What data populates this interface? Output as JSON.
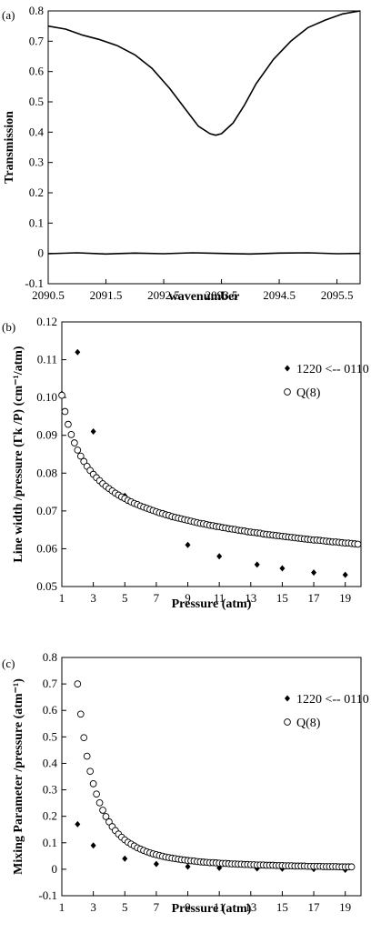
{
  "chart_data": [
    {
      "panel_label": "(a)",
      "type": "line",
      "xlabel": "wavenumber",
      "ylabel": "Transmission",
      "xlim": [
        2090.5,
        2095.9
      ],
      "ylim": [
        -0.1,
        0.8
      ],
      "xticks": [
        2090.5,
        2091.5,
        2092.5,
        2093.5,
        2094.5,
        2095.5
      ],
      "xtick_labels": [
        "2090.5",
        "2091.5",
        "2092.5",
        "2093.5",
        "2094.5",
        "2095.5"
      ],
      "yticks": [
        -0.1,
        0,
        0.1,
        0.2,
        0.3,
        0.4,
        0.5,
        0.6,
        0.7,
        0.8
      ],
      "ytick_labels": [
        "-0.1",
        "0",
        "0.1",
        "0.2",
        "0.3",
        "0.4",
        "0.5",
        "0.6",
        "0.7",
        "0.8"
      ],
      "series": [
        {
          "style": "line",
          "x": [
            2090.5,
            2090.8,
            2091.1,
            2091.4,
            2091.7,
            2092.0,
            2092.3,
            2092.6,
            2092.9,
            2093.1,
            2093.3,
            2093.4,
            2093.5,
            2093.7,
            2093.9,
            2094.1,
            2094.4,
            2094.7,
            2095.0,
            2095.3,
            2095.6,
            2095.9
          ],
          "y": [
            0.75,
            0.74,
            0.72,
            0.705,
            0.685,
            0.655,
            0.61,
            0.545,
            0.47,
            0.42,
            0.395,
            0.39,
            0.395,
            0.43,
            0.49,
            0.56,
            0.64,
            0.7,
            0.745,
            0.77,
            0.79,
            0.8
          ]
        },
        {
          "style": "line",
          "x": [
            2090.5,
            2091.0,
            2091.5,
            2092.0,
            2092.5,
            2093.0,
            2093.5,
            2094.0,
            2094.5,
            2095.0,
            2095.5,
            2095.9
          ],
          "y": [
            -0.001,
            0.002,
            -0.002,
            0.001,
            -0.001,
            0.002,
            0.0,
            -0.002,
            0.001,
            0.002,
            -0.001,
            0.0
          ]
        }
      ]
    },
    {
      "panel_label": "(b)",
      "type": "scatter",
      "xlabel": "Pressure (atm)",
      "ylabel": "Line width /pressure (Γk /P) (cm⁻¹/atm)",
      "xlim": [
        1,
        20
      ],
      "ylim": [
        0.05,
        0.12
      ],
      "xticks": [
        1,
        3,
        5,
        7,
        9,
        11,
        13,
        15,
        17,
        19
      ],
      "xtick_labels": [
        "1",
        "3",
        "5",
        "7",
        "9",
        "11",
        "13",
        "15",
        "17",
        "19"
      ],
      "yticks": [
        0.05,
        0.06,
        0.07,
        0.08,
        0.09,
        0.1,
        0.11,
        0.12
      ],
      "ytick_labels": [
        "0.05",
        "0.06",
        "0.07",
        "0.08",
        "0.09",
        "0.10",
        "0.11",
        "0.12"
      ],
      "legend_position": "top-right",
      "series": [
        {
          "name": "1220 <-- 0110",
          "marker": "diamond",
          "x": [
            1,
            2,
            3,
            5,
            9,
            11,
            13.4,
            15,
            17,
            19
          ],
          "y": [
            0.101,
            0.112,
            0.091,
            0.074,
            0.061,
            0.058,
            0.0558,
            0.0548,
            0.0537,
            0.0531
          ]
        },
        {
          "name": "Q(8)",
          "marker": "open-circle",
          "x": [
            1.0,
            1.2,
            1.4,
            1.6,
            1.8,
            2.0,
            2.2,
            2.4,
            2.6,
            2.8,
            3.0,
            3.2,
            3.4,
            3.6,
            3.8,
            4.0,
            4.2,
            4.4,
            4.6,
            4.8,
            5.0,
            5.2,
            5.4,
            5.6,
            5.8,
            6.0,
            6.2,
            6.4,
            6.6,
            6.8,
            7.0,
            7.2,
            7.4,
            7.6,
            7.8,
            8.0,
            8.2,
            8.4,
            8.6,
            8.8,
            9.0,
            9.2,
            9.4,
            9.6,
            9.8,
            10.0,
            10.2,
            10.4,
            10.6,
            10.8,
            11.0,
            11.2,
            11.4,
            11.6,
            11.8,
            12.0,
            12.2,
            12.4,
            12.6,
            12.8,
            13.0,
            13.2,
            13.4,
            13.6,
            13.8,
            14.0,
            14.2,
            14.4,
            14.6,
            14.8,
            15.0,
            15.2,
            15.4,
            15.6,
            15.8,
            16.0,
            16.2,
            16.4,
            16.6,
            16.8,
            17.0,
            17.2,
            17.4,
            17.6,
            17.8,
            18.0,
            18.2,
            18.4,
            18.6,
            18.8,
            19.0,
            19.2,
            19.4,
            19.6,
            19.8
          ],
          "y": [
            0.1006,
            0.0963,
            0.0929,
            0.0902,
            0.088,
            0.0861,
            0.0845,
            0.0831,
            0.0818,
            0.0807,
            0.0797,
            0.0788,
            0.078,
            0.0772,
            0.0765,
            0.0759,
            0.0753,
            0.0747,
            0.0742,
            0.0737,
            0.0733,
            0.0728,
            0.0724,
            0.072,
            0.0717,
            0.0713,
            0.071,
            0.0707,
            0.0704,
            0.0701,
            0.0698,
            0.0695,
            0.0693,
            0.069,
            0.0688,
            0.0685,
            0.0683,
            0.0681,
            0.0679,
            0.0677,
            0.0675,
            0.0673,
            0.0671,
            0.0669,
            0.0667,
            0.0666,
            0.0664,
            0.0662,
            0.0661,
            0.0659,
            0.0658,
            0.0656,
            0.0655,
            0.0653,
            0.0652,
            0.0651,
            0.0649,
            0.0648,
            0.0647,
            0.0645,
            0.0644,
            0.0643,
            0.0642,
            0.0641,
            0.0639,
            0.0638,
            0.0637,
            0.0636,
            0.0635,
            0.0634,
            0.0633,
            0.0632,
            0.0631,
            0.063,
            0.0629,
            0.0628,
            0.0627,
            0.0626,
            0.0625,
            0.0624,
            0.0623,
            0.0623,
            0.0622,
            0.0621,
            0.062,
            0.0619,
            0.0618,
            0.0618,
            0.0617,
            0.0616,
            0.0615,
            0.0615,
            0.0614,
            0.0613,
            0.0612
          ]
        }
      ]
    },
    {
      "panel_label": "(c)",
      "type": "scatter",
      "xlabel": "Pressure (atm)",
      "ylabel": "Mixing Parameter /pressure (atm⁻¹)",
      "xlim": [
        1,
        20
      ],
      "ylim": [
        -0.1,
        0.8
      ],
      "xticks": [
        1,
        3,
        5,
        7,
        9,
        11,
        13,
        15,
        17,
        19
      ],
      "xtick_labels": [
        "1",
        "3",
        "5",
        "7",
        "9",
        "11",
        "13",
        "15",
        "17",
        "19"
      ],
      "yticks": [
        -0.1,
        0,
        0.1,
        0.2,
        0.3,
        0.4,
        0.5,
        0.6,
        0.7,
        0.8
      ],
      "ytick_labels": [
        "-0.1",
        "0",
        "0.1",
        "0.2",
        "0.3",
        "0.4",
        "0.5",
        "0.6",
        "0.7",
        "0.8"
      ],
      "legend_position": "top-right",
      "series": [
        {
          "name": "1220 <-- 0110",
          "marker": "diamond",
          "x": [
            2,
            3,
            5,
            7,
            9,
            11,
            13.4,
            15,
            17,
            19
          ],
          "y": [
            0.17,
            0.09,
            0.04,
            0.02,
            0.01,
            0.005,
            0.003,
            0.002,
            0.001,
            -0.002
          ]
        },
        {
          "name": "Q(8)",
          "marker": "open-circle",
          "x": [
            2.0,
            2.2,
            2.4,
            2.6,
            2.8,
            3.0,
            3.2,
            3.4,
            3.6,
            3.8,
            4.0,
            4.2,
            4.4,
            4.6,
            4.8,
            5.0,
            5.2,
            5.4,
            5.6,
            5.8,
            6.0,
            6.2,
            6.4,
            6.6,
            6.8,
            7.0,
            7.2,
            7.4,
            7.6,
            7.8,
            8.0,
            8.2,
            8.4,
            8.6,
            8.8,
            9.0,
            9.2,
            9.4,
            9.6,
            9.8,
            10.0,
            10.2,
            10.4,
            10.6,
            10.8,
            11.0,
            11.2,
            11.4,
            11.6,
            11.8,
            12.0,
            12.2,
            12.4,
            12.6,
            12.8,
            13.0,
            13.2,
            13.4,
            13.6,
            13.8,
            14.0,
            14.2,
            14.4,
            14.6,
            14.8,
            15.0,
            15.2,
            15.4,
            15.6,
            15.8,
            16.0,
            16.2,
            16.4,
            16.6,
            16.8,
            17.0,
            17.2,
            17.4,
            17.6,
            17.8,
            18.0,
            18.2,
            18.4,
            18.6,
            18.8,
            19.0,
            19.2,
            19.4
          ],
          "y": [
            0.7,
            0.586,
            0.497,
            0.427,
            0.37,
            0.323,
            0.284,
            0.251,
            0.223,
            0.199,
            0.179,
            0.161,
            0.146,
            0.133,
            0.121,
            0.111,
            0.102,
            0.095,
            0.088,
            0.081,
            0.076,
            0.071,
            0.066,
            0.062,
            0.058,
            0.055,
            0.052,
            0.049,
            0.046,
            0.044,
            0.042,
            0.04,
            0.038,
            0.036,
            0.035,
            0.033,
            0.032,
            0.031,
            0.029,
            0.028,
            0.027,
            0.026,
            0.025,
            0.025,
            0.024,
            0.023,
            0.022,
            0.022,
            0.021,
            0.02,
            0.02,
            0.019,
            0.019,
            0.018,
            0.018,
            0.017,
            0.017,
            0.016,
            0.016,
            0.016,
            0.015,
            0.015,
            0.015,
            0.014,
            0.014,
            0.014,
            0.013,
            0.013,
            0.013,
            0.012,
            0.012,
            0.012,
            0.012,
            0.011,
            0.011,
            0.011,
            0.011,
            0.011,
            0.01,
            0.01,
            0.01,
            0.01,
            0.01,
            0.009,
            0.009,
            0.009,
            0.009,
            0.009
          ]
        }
      ]
    }
  ]
}
